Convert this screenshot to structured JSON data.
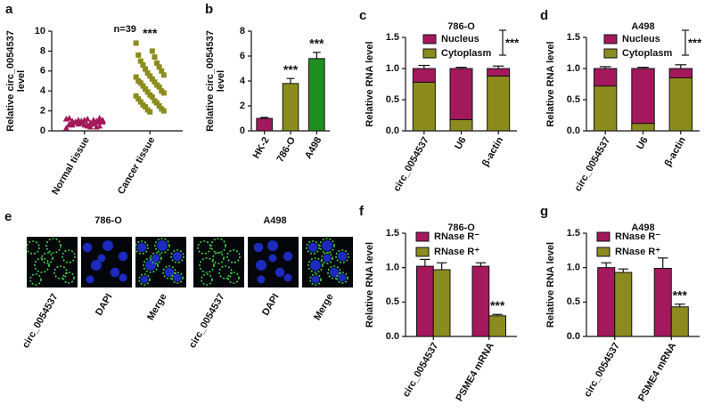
{
  "chart_data": [
    {
      "type": "strip",
      "label": "a",
      "annotation": "n=39",
      "ylabel": [
        "Relative circ_0054537",
        "level"
      ],
      "categories": [
        "Normal tissue",
        "Cancer tissue"
      ],
      "values": [
        [
          0.3,
          0.5,
          0.6,
          0.7,
          0.8,
          0.8,
          0.9,
          0.9,
          1.0,
          1.0,
          1.0,
          1.1,
          1.1,
          1.2,
          1.2,
          1.3,
          0.4,
          0.6,
          0.7,
          0.9,
          1.0,
          1.1,
          0.5,
          0.8,
          0.9,
          1.0,
          1.2,
          0.6,
          0.7,
          0.8,
          1.0,
          1.1,
          0.9,
          0.4,
          0.7,
          1.3,
          0.8,
          1.0,
          0.6
        ],
        [
          8.8,
          8.0,
          7.6,
          7.4,
          7.0,
          6.8,
          6.6,
          6.4,
          6.2,
          6.0,
          5.8,
          5.6,
          5.5,
          5.4,
          5.2,
          5.0,
          4.9,
          4.8,
          4.6,
          4.5,
          4.4,
          4.2,
          4.0,
          3.9,
          3.8,
          3.6,
          3.5,
          3.4,
          3.2,
          3.0,
          2.9,
          2.8,
          2.6,
          2.5,
          2.4,
          2.2,
          2.1,
          2.0,
          1.9
        ]
      ],
      "colors": [
        "#a3195b",
        "#8c8c1e"
      ],
      "markers": [
        "triangle",
        "square"
      ],
      "significance": [
        null,
        "***"
      ],
      "ylim": [
        0,
        10
      ],
      "yticks": [
        0,
        2,
        4,
        6,
        8,
        10
      ]
    },
    {
      "type": "bar",
      "label": "b",
      "ylabel": [
        "Relative circ_0054537",
        "level"
      ],
      "categories": [
        "HK-2",
        "786-O",
        "A498"
      ],
      "values": [
        1.0,
        3.8,
        5.8
      ],
      "errors": [
        0.08,
        0.4,
        0.5
      ],
      "colors": [
        "#a3195b",
        "#8c8c1e",
        "#1f8f1f"
      ],
      "significance": [
        null,
        "***",
        "***"
      ],
      "ylim": [
        0,
        8
      ],
      "yticks": [
        0,
        2,
        4,
        6,
        8
      ]
    },
    {
      "type": "stacked_bar",
      "label": "c",
      "title": "786-O",
      "ylabel": [
        "Relative RNA level"
      ],
      "categories": [
        "circ_0054537",
        "U6",
        "β-actin"
      ],
      "series": [
        {
          "name": "Cytoplasm",
          "color": "#8c8c1e",
          "values": [
            0.78,
            0.18,
            0.88
          ]
        },
        {
          "name": "Nucleus",
          "color": "#a3195b",
          "values": [
            0.22,
            0.82,
            0.12
          ]
        }
      ],
      "errors": [
        0.05,
        0.02,
        0.04
      ],
      "annotation": "***",
      "ylim": [
        0,
        1.5
      ],
      "yticks": [
        {
          "value": 0,
          "label": "0.0"
        },
        {
          "value": 0.5,
          "label": "0.5"
        },
        {
          "value": 1,
          "label": "1.0"
        },
        {
          "value": 1.5,
          "label": "1.5"
        }
      ]
    },
    {
      "type": "stacked_bar",
      "label": "d",
      "title": "A498",
      "ylabel": [
        "Relative RNA level"
      ],
      "categories": [
        "circ_0054537",
        "U6",
        "β-actin"
      ],
      "series": [
        {
          "name": "Cytoplasm",
          "color": "#8c8c1e",
          "values": [
            0.72,
            0.12,
            0.85
          ]
        },
        {
          "name": "Nucleus",
          "color": "#a3195b",
          "values": [
            0.28,
            0.88,
            0.15
          ]
        }
      ],
      "errors": [
        0.03,
        0.02,
        0.06
      ],
      "annotation": "***",
      "ylim": [
        0,
        1.5
      ],
      "yticks": [
        {
          "value": 0,
          "label": "0.0"
        },
        {
          "value": 0.5,
          "label": "0.5"
        },
        {
          "value": 1,
          "label": "1.0"
        },
        {
          "value": 1.5,
          "label": "1.5"
        }
      ]
    },
    {
      "type": "grouped_bar",
      "label": "f",
      "title": "786-O",
      "ylabel": [
        "Relative RNA level"
      ],
      "categories": [
        "circ_0054537",
        "PSME4 mRNA"
      ],
      "series": [
        {
          "name": "RNase R⁻",
          "color": "#a3195b",
          "values": [
            1.02,
            1.02
          ],
          "errors": [
            0.1,
            0.05
          ],
          "significance": [
            null,
            null
          ]
        },
        {
          "name": "RNase R⁺",
          "color": "#8c8c1e",
          "values": [
            0.97,
            0.3
          ],
          "errors": [
            0.1,
            0.02
          ],
          "significance": [
            null,
            "***"
          ]
        }
      ],
      "ylim": [
        0,
        1.5
      ],
      "yticks": [
        {
          "value": 0,
          "label": "0.0"
        },
        {
          "value": 0.5,
          "label": "0.5"
        },
        {
          "value": 1,
          "label": "1.0"
        },
        {
          "value": 1.5,
          "label": "1.5"
        }
      ]
    },
    {
      "type": "grouped_bar",
      "label": "g",
      "title": "A498",
      "ylabel": [
        "Relative RNA level"
      ],
      "categories": [
        "circ_0054537",
        "PSME4 mRNA"
      ],
      "series": [
        {
          "name": "RNase R⁻",
          "color": "#a3195b",
          "values": [
            1.0,
            0.99
          ],
          "errors": [
            0.07,
            0.15
          ],
          "significance": [
            null,
            null
          ]
        },
        {
          "name": "RNase R⁺",
          "color": "#8c8c1e",
          "values": [
            0.93,
            0.43
          ],
          "errors": [
            0.05,
            0.04
          ],
          "significance": [
            null,
            "***"
          ]
        }
      ],
      "ylim": [
        0,
        1.5
      ],
      "yticks": [
        {
          "value": 0,
          "label": "0.0"
        },
        {
          "value": 0.5,
          "label": "0.5"
        },
        {
          "value": 1,
          "label": "1.0"
        },
        {
          "value": 1.5,
          "label": "1.5"
        }
      ]
    }
  ],
  "image_panel": {
    "label": "e",
    "groups": [
      {
        "title": "786-O",
        "channels": [
          "circ_0054537",
          "DAPI",
          "Merge"
        ]
      },
      {
        "title": "A498",
        "channels": [
          "circ_0054537",
          "DAPI",
          "Merge"
        ]
      }
    ]
  }
}
